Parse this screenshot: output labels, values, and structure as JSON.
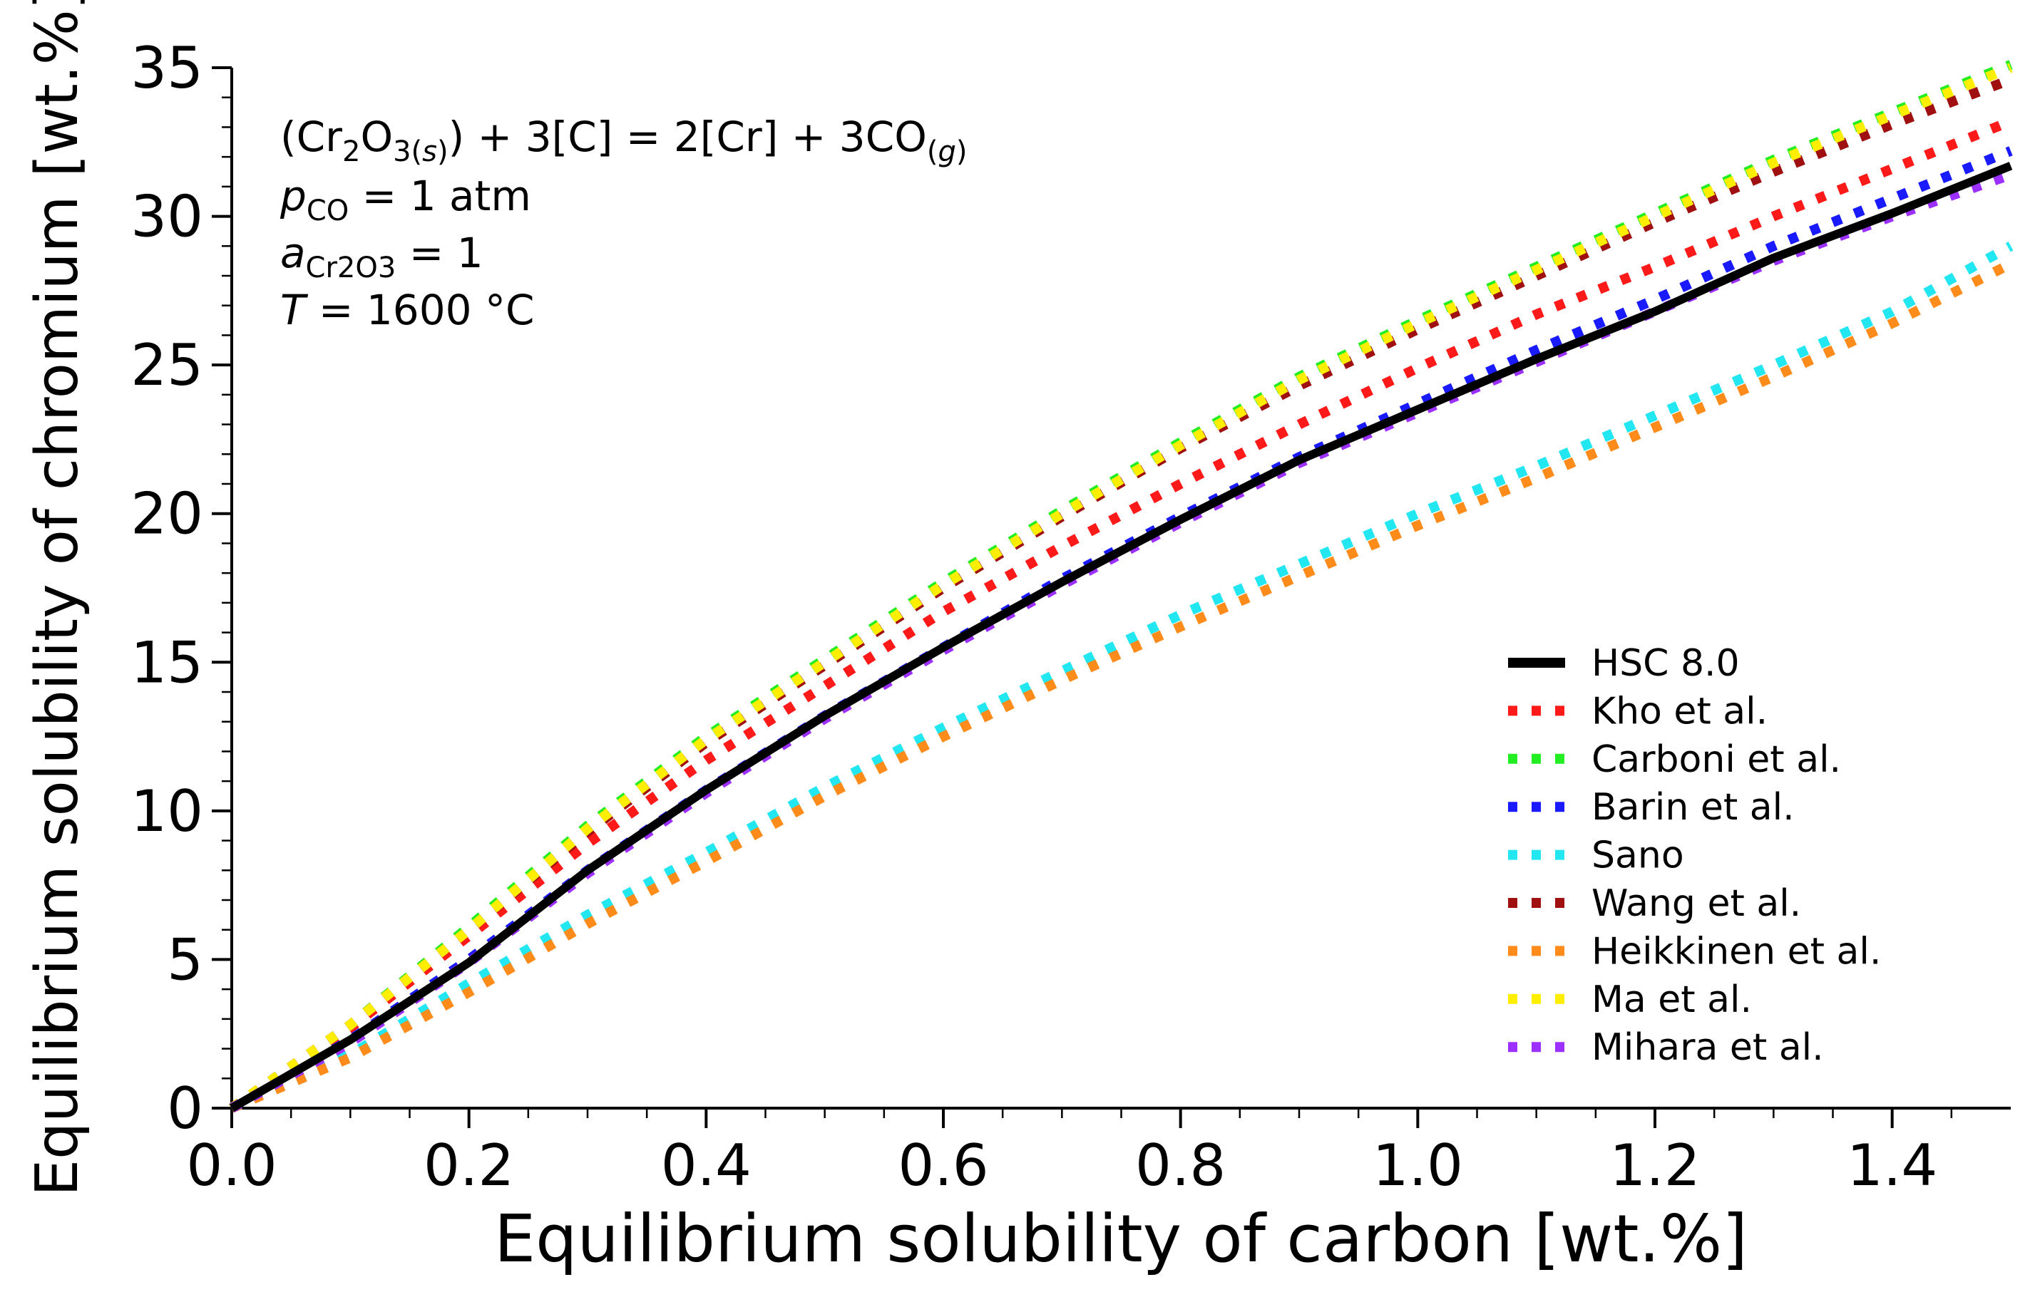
{
  "chart_data": {
    "type": "line",
    "xlabel": "Equilibrium solubility of carbon [wt.%]",
    "ylabel": "Equilibrium solubility of chromium [wt.%]",
    "xlim": [
      0,
      1.5
    ],
    "ylim": [
      0,
      35
    ],
    "x_ticks": [
      0.0,
      0.2,
      0.4,
      0.6,
      0.8,
      1.0,
      1.2,
      1.4
    ],
    "x_tick_labels": [
      "0.0",
      "0.2",
      "0.4",
      "0.6",
      "0.8",
      "1.0",
      "1.2",
      "1.4"
    ],
    "y_ticks": [
      0,
      5,
      10,
      15,
      20,
      25,
      30,
      35
    ],
    "y_tick_labels": [
      "0",
      "5",
      "10",
      "15",
      "20",
      "25",
      "30",
      "35"
    ],
    "grid": false,
    "legend_position": "bottom-right",
    "annotations": {
      "reaction": {
        "part1": "(Cr",
        "sub1": "2",
        "part2": "O",
        "sub2": "3(",
        "sub2_italic": "s",
        "sub2_end": ")",
        "part3": ") + 3[C] = 2[Cr] + 3CO",
        "sub3_open": "(",
        "sub3_italic": "g",
        "sub3_close": ")"
      },
      "pressure": {
        "symbol": "p",
        "sub": "CO",
        "rest": " = 1 atm"
      },
      "activity": {
        "symbol": "a",
        "sub": "Cr2O3",
        "rest": " = 1"
      },
      "temperature": {
        "symbol": "T",
        "rest": " = 1600 °C"
      }
    },
    "x": [
      0.0,
      0.1,
      0.2,
      0.3,
      0.4,
      0.5,
      0.6,
      0.7,
      0.8,
      0.9,
      1.0,
      1.1,
      1.2,
      1.3,
      1.4,
      1.5
    ],
    "series": [
      {
        "name": "HSC 8.0",
        "color": "#000000",
        "style": "solid",
        "values": [
          0.0,
          2.3,
          4.9,
          8.0,
          10.7,
          13.2,
          15.5,
          17.7,
          19.8,
          21.8,
          23.5,
          25.2,
          26.8,
          28.6,
          30.1,
          31.7
        ]
      },
      {
        "name": "Kho et al.",
        "color": "#ff1a1a",
        "style": "dotted",
        "values": [
          0.0,
          2.7,
          5.8,
          8.9,
          11.7,
          14.2,
          16.7,
          18.9,
          21.0,
          23.0,
          24.9,
          26.7,
          28.3,
          30.0,
          31.6,
          33.2
        ]
      },
      {
        "name": "Carboni et al.",
        "color": "#22ee22",
        "style": "dotted",
        "values": [
          0.0,
          2.8,
          6.1,
          9.5,
          12.5,
          15.1,
          17.7,
          20.1,
          22.4,
          24.6,
          26.5,
          28.3,
          30.1,
          31.9,
          33.5,
          35.1
        ]
      },
      {
        "name": "Barin et al.",
        "color": "#1a1aff",
        "style": "dotted",
        "values": [
          0.0,
          2.3,
          5.0,
          8.0,
          10.7,
          13.2,
          15.5,
          17.8,
          19.9,
          21.9,
          23.7,
          25.5,
          27.2,
          29.0,
          30.6,
          32.2
        ]
      },
      {
        "name": "Sano",
        "color": "#22e6f0",
        "style": "dotted",
        "values": [
          0.0,
          1.8,
          4.2,
          6.5,
          8.6,
          10.8,
          12.8,
          14.7,
          16.6,
          18.3,
          20.0,
          21.6,
          23.3,
          25.0,
          26.8,
          29.0
        ]
      },
      {
        "name": "Wang et al.",
        "color": "#a01010",
        "style": "dotted",
        "values": [
          0.0,
          2.8,
          6.0,
          9.3,
          12.3,
          14.9,
          17.5,
          19.9,
          22.2,
          24.3,
          26.2,
          28.0,
          29.8,
          31.5,
          33.1,
          34.6
        ]
      },
      {
        "name": "Heikkinen et al.",
        "color": "#ff8c1a",
        "style": "dotted",
        "values": [
          0.0,
          1.7,
          3.9,
          6.2,
          8.3,
          10.5,
          12.5,
          14.4,
          16.2,
          17.9,
          19.6,
          21.2,
          22.9,
          24.6,
          26.4,
          28.4
        ]
      },
      {
        "name": "Ma et al.",
        "color": "#ffee00",
        "style": "dotted",
        "values": [
          0.0,
          2.8,
          6.0,
          9.4,
          12.4,
          15.0,
          17.6,
          20.0,
          22.3,
          24.5,
          26.4,
          28.2,
          30.0,
          31.8,
          33.4,
          35.0
        ]
      },
      {
        "name": "Mihara et al.",
        "color": "#9b30ff",
        "style": "dotted",
        "values": [
          0.0,
          2.2,
          4.9,
          7.9,
          10.6,
          13.1,
          15.4,
          17.6,
          19.7,
          21.7,
          23.4,
          25.1,
          26.8,
          28.5,
          30.0,
          31.4
        ]
      }
    ]
  }
}
